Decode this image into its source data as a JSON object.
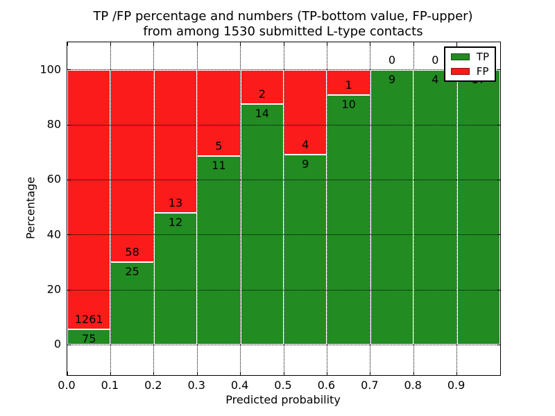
{
  "title": {
    "line1": "TP /FP percentage and numbers (TP-bottom value, FP-upper)",
    "line2": "from among 1530 submitted L-type contacts"
  },
  "chart_data": {
    "type": "bar",
    "stacked": true,
    "normalized_to_percent": true,
    "title": "TP /FP percentage and numbers (TP-bottom value, FP-upper) from among 1530 submitted L-type contacts",
    "total_contacts": 1530,
    "categories": [
      "0.0-0.1",
      "0.1-0.2",
      "0.2-0.3",
      "0.3-0.4",
      "0.4-0.5",
      "0.5-0.6",
      "0.6-0.7",
      "0.7-0.8",
      "0.8-0.9",
      "0.9-1.0"
    ],
    "series": [
      {
        "name": "TP",
        "color": "#228b22",
        "values": [
          75,
          25,
          12,
          11,
          14,
          9,
          10,
          9,
          4,
          17
        ]
      },
      {
        "name": "FP",
        "color": "#fb1b1b",
        "values": [
          1261,
          58,
          13,
          5,
          2,
          4,
          1,
          0,
          0,
          0
        ]
      }
    ],
    "xlabel": "Predicted probability",
    "ylabel": "Percentage",
    "xlim": [
      0,
      1
    ],
    "ylim": [
      -11,
      110
    ],
    "x_ticks": [
      0,
      0.1,
      0.2,
      0.3,
      0.4,
      0.5,
      0.6,
      0.7,
      0.8,
      0.9,
      1.0
    ],
    "x_tick_labels": [
      "0.0",
      "0.1",
      "0.2",
      "0.3",
      "0.4",
      "0.5",
      "0.6",
      "0.7",
      "0.8",
      "0.9",
      ""
    ],
    "y_ticks": [
      0,
      20,
      40,
      60,
      80,
      100
    ],
    "y_tick_labels": [
      "0",
      "20",
      "40",
      "60",
      "80",
      "100"
    ],
    "grid": true,
    "grid_style": "dotted",
    "legend": {
      "position": "upper right",
      "entries": [
        {
          "label": "TP",
          "color": "#228b22"
        },
        {
          "label": "FP",
          "color": "#fb1b1b"
        }
      ]
    }
  }
}
